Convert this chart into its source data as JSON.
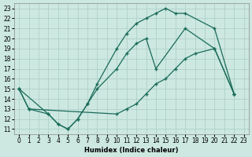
{
  "xlabel": "Humidex (Indice chaleur)",
  "bg_color": "#cce8e0",
  "grid_color": "#aaccc4",
  "line_color": "#1a6b5a",
  "xlim": [
    -0.5,
    23.5
  ],
  "ylim": [
    10.5,
    23.5
  ],
  "xticks": [
    0,
    1,
    2,
    3,
    4,
    5,
    6,
    7,
    8,
    9,
    10,
    11,
    12,
    13,
    14,
    15,
    16,
    17,
    18,
    19,
    20,
    21,
    22,
    23
  ],
  "yticks": [
    11,
    12,
    13,
    14,
    15,
    16,
    17,
    18,
    19,
    20,
    21,
    22,
    23
  ],
  "line1_x": [
    0,
    1,
    3,
    4,
    5,
    6,
    7,
    8,
    10,
    11,
    12,
    13,
    14,
    17,
    20,
    22
  ],
  "line1_y": [
    15,
    13,
    12.5,
    11.5,
    11,
    12,
    13.5,
    15,
    17,
    18.5,
    19.5,
    20,
    17,
    21,
    19,
    14.5
  ],
  "line2_x": [
    0,
    1,
    10,
    11,
    12,
    13,
    14,
    15,
    16,
    17,
    18,
    20,
    22
  ],
  "line2_y": [
    15,
    13,
    12.5,
    13,
    13.5,
    14.5,
    15.5,
    16,
    17,
    18,
    18.5,
    19,
    14.5
  ],
  "line3_x": [
    0,
    3,
    4,
    5,
    6,
    7,
    8,
    10,
    11,
    12,
    13,
    14,
    15,
    16,
    17,
    20,
    22
  ],
  "line3_y": [
    15,
    12.5,
    11.5,
    11,
    12,
    13.5,
    15.5,
    19,
    20.5,
    21.5,
    22,
    22.5,
    23,
    22.5,
    22.5,
    21,
    14.5
  ]
}
